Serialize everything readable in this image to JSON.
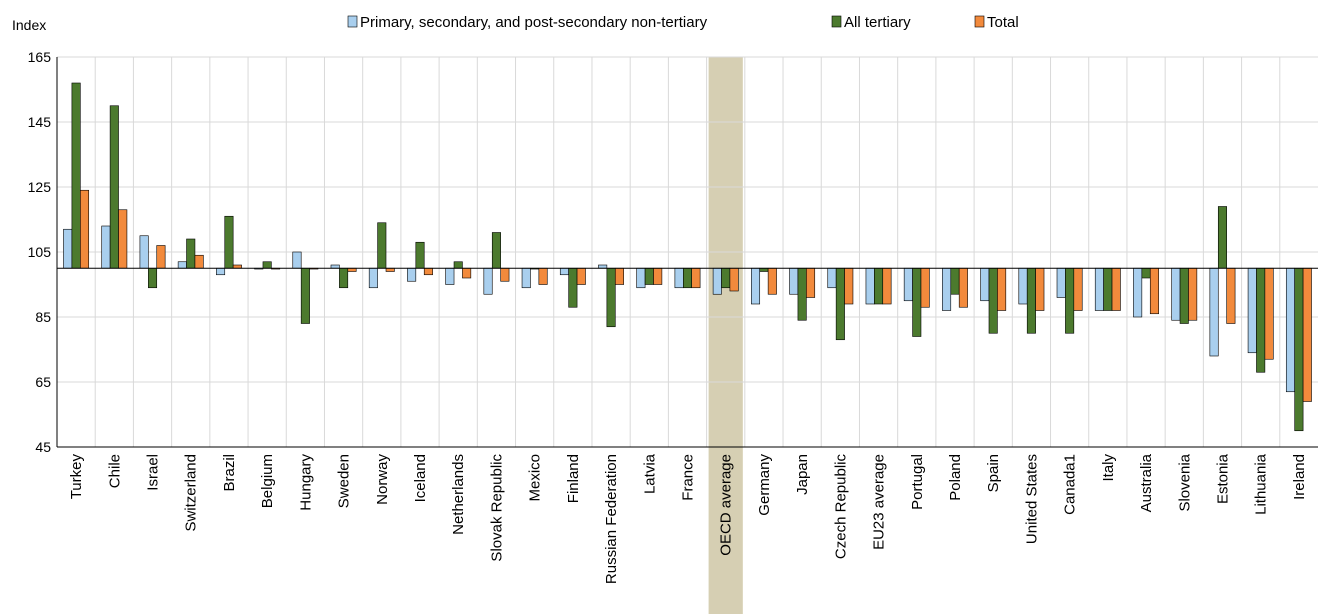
{
  "chart_data": {
    "type": "bar",
    "ylabel": "Index",
    "ylim": [
      45,
      165
    ],
    "yticks": [
      45,
      65,
      85,
      105,
      125,
      145,
      165
    ],
    "baseline": 100,
    "grid": true,
    "legend_position": "top",
    "highlight_category": "OECD average",
    "highlight_color": "#d6cfb3",
    "categories": [
      "Turkey",
      "Chile",
      "Israel",
      "Switzerland",
      "Brazil",
      "Belgium",
      "Hungary",
      "Sweden",
      "Norway",
      "Iceland",
      "Netherlands",
      "Slovak Republic",
      "Mexico",
      "Finland",
      "Russian Federation",
      "Latvia",
      "France",
      "OECD average",
      "Germany",
      "Japan",
      "Czech Republic",
      "EU23 average",
      "Portugal",
      "Poland",
      "Spain",
      "United States",
      "Canada1",
      "Italy",
      "Australia",
      "Slovenia",
      "Estonia",
      "Lithuania",
      "Ireland"
    ],
    "series": [
      {
        "name": "Primary, secondary, and post-secondary non-tertiary",
        "color": "#a9cfee",
        "values": [
          112,
          113,
          110,
          102,
          98,
          100,
          105,
          101,
          94,
          96,
          95,
          92,
          94,
          98,
          101,
          94,
          94,
          92,
          89,
          92,
          94,
          89,
          90,
          87,
          90,
          89,
          91,
          87,
          85,
          84,
          73,
          74,
          62
        ]
      },
      {
        "name": "All tertiary",
        "color": "#4c7a2e",
        "values": [
          157,
          150,
          94,
          109,
          116,
          102,
          83,
          94,
          114,
          108,
          102,
          111,
          100,
          88,
          82,
          95,
          94,
          94,
          99,
          84,
          78,
          89,
          79,
          92,
          80,
          80,
          80,
          87,
          97,
          83,
          119,
          68,
          50
        ]
      },
      {
        "name": "Total",
        "color": "#f28a3c",
        "values": [
          124,
          118,
          107,
          104,
          101,
          100,
          100,
          99,
          99,
          98,
          97,
          96,
          95,
          95,
          95,
          95,
          94,
          93,
          92,
          91,
          89,
          89,
          88,
          88,
          87,
          87,
          87,
          87,
          86,
          84,
          83,
          72,
          59
        ]
      }
    ]
  }
}
